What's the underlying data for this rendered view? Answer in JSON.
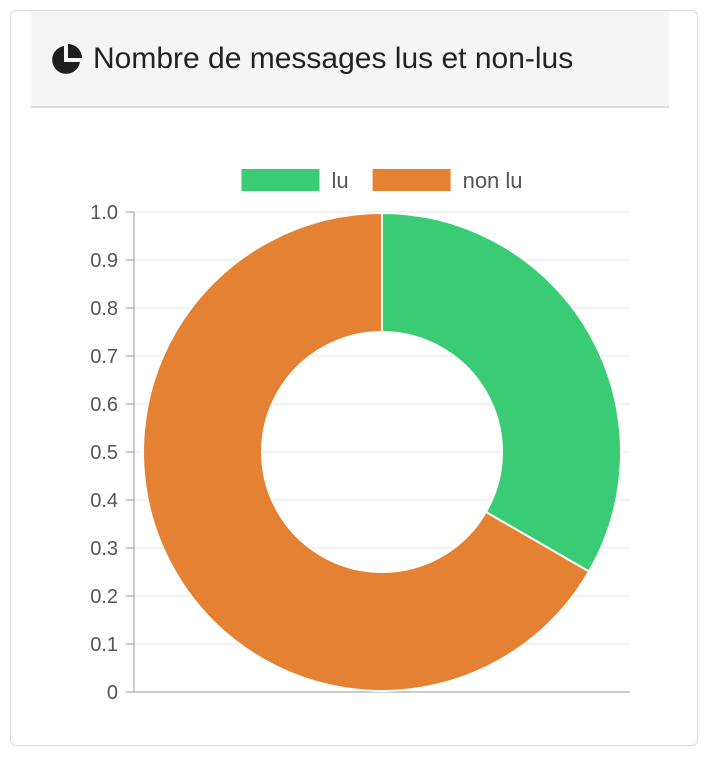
{
  "card": {
    "title": "Nombre de messages lus et non-lus",
    "icon": "pie-chart-icon"
  },
  "colors": {
    "lu": "#3acc74",
    "non_lu": "#e48133",
    "grid": "#e6e6e6",
    "axis": "#999999",
    "tick_text": "#555555"
  },
  "chart_data": {
    "type": "pie",
    "variant": "doughnut",
    "title": "Nombre de messages lus et non-lus",
    "categories": [
      "lu",
      "non lu"
    ],
    "values": [
      1,
      2
    ],
    "legend": {
      "position": "top",
      "entries": [
        "lu",
        "non lu"
      ]
    },
    "yaxis": {
      "ylim": [
        0,
        1
      ],
      "ticks": [
        "1.0",
        "0.9",
        "0.8",
        "0.7",
        "0.6",
        "0.5",
        "0.4",
        "0.3",
        "0.2",
        "0.1",
        "0"
      ]
    },
    "grid": true
  }
}
